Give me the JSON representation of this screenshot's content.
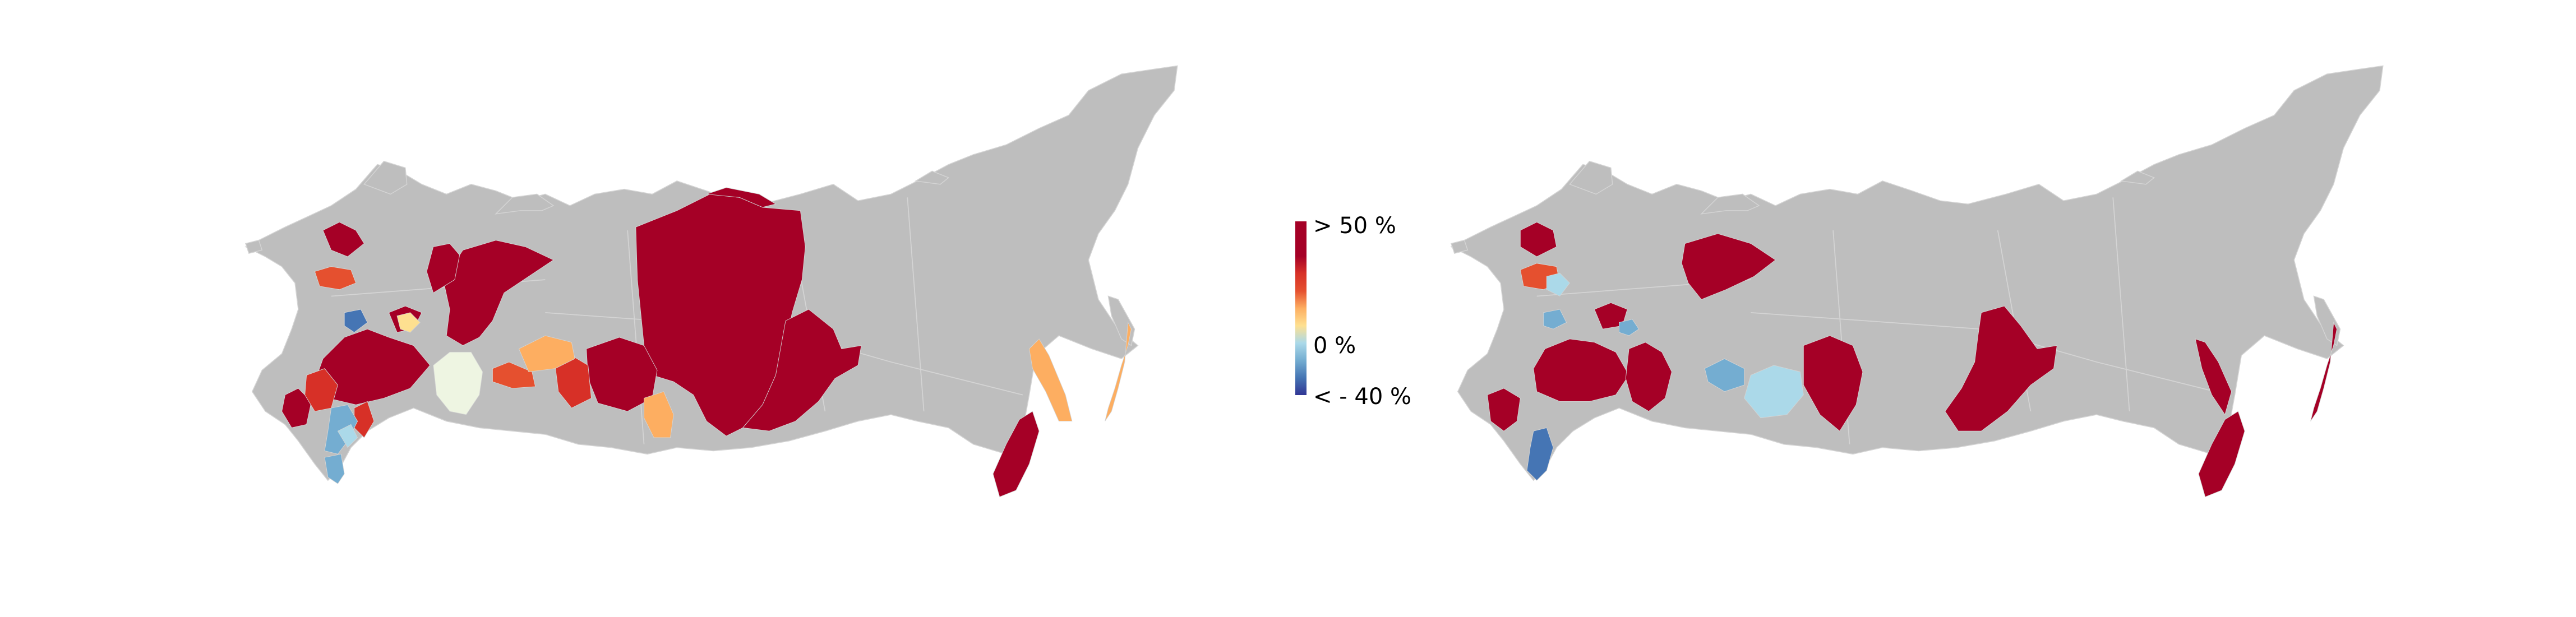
{
  "colors": {
    "no_data": "#BEBEBE",
    "border": "#D4D4D4",
    "dark_red": "#A50026",
    "red": "#D73027",
    "orange_red": "#E5502F",
    "orange": "#FDAE61",
    "yellow": "#FEE090",
    "pale": "#EEF5E2",
    "light_blue": "#ABD9E9",
    "blue": "#74ADD1",
    "dark_blue": "#4575B4"
  },
  "legend": {
    "max_label": "> 50 %",
    "mid_label": "0 %",
    "min_label": "< - 40 %",
    "stops": [
      "#313695",
      "#4575B4",
      "#74ADD1",
      "#ABD9E9",
      "#FEE090",
      "#FDAE61",
      "#E5502F",
      "#D73027",
      "#A50026",
      "#A50026",
      "#A50026"
    ]
  }
}
